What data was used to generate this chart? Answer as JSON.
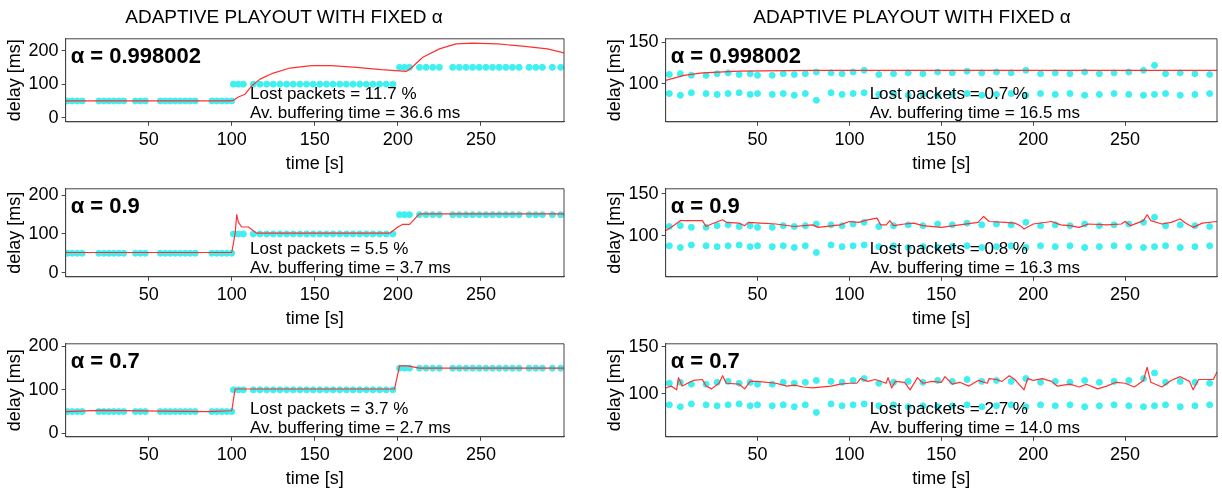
{
  "chart_data": [
    {
      "type": "scatter",
      "title": "ADAPTIVE PLAYOUT WITH FIXED α",
      "xlabel": "time [s]",
      "ylabel": "delay [ms]",
      "xlim": [
        0,
        300
      ],
      "xticks": [
        50,
        100,
        150,
        200,
        250
      ],
      "ylim": [
        -12,
        235
      ],
      "yticks": [
        0,
        100,
        200
      ],
      "legend": false,
      "annotations": [
        "α = 0.998002",
        "Lost packets = 11.7 %",
        "Av. buffering time = 36.6 ms"
      ],
      "series": [
        {
          "type": "scatter",
          "marker": "circle",
          "color": "#3ff0f0",
          "x": [
            1,
            4,
            7,
            10,
            20,
            23,
            26,
            29,
            32,
            35,
            42,
            45,
            48,
            57,
            60,
            63,
            66,
            69,
            72,
            75,
            78,
            88,
            91,
            94,
            97,
            100,
            101,
            104,
            107,
            113,
            117,
            121,
            125,
            129,
            133,
            137,
            141,
            145,
            149,
            153,
            157,
            161,
            165,
            169,
            173,
            177,
            181,
            185,
            189,
            193,
            197,
            201,
            204,
            207,
            213,
            217,
            221,
            225,
            233,
            237,
            241,
            245,
            249,
            253,
            257,
            261,
            265,
            269,
            273,
            279,
            283,
            287,
            293,
            298
          ],
          "values": [
            50,
            50,
            50,
            50,
            50,
            50,
            50,
            50,
            50,
            50,
            50,
            50,
            50,
            50,
            50,
            50,
            50,
            50,
            50,
            50,
            50,
            50,
            50,
            50,
            50,
            50,
            100,
            100,
            100,
            100,
            100,
            100,
            100,
            100,
            100,
            100,
            100,
            100,
            100,
            100,
            100,
            100,
            100,
            100,
            100,
            100,
            100,
            100,
            100,
            100,
            100,
            150,
            150,
            150,
            150,
            150,
            150,
            150,
            150,
            150,
            150,
            150,
            150,
            150,
            150,
            150,
            150,
            150,
            150,
            150,
            150,
            150,
            150,
            150
          ]
        },
        {
          "type": "line",
          "marker": "none",
          "color": "#ff3030",
          "x": [
            0,
            98,
            101,
            104,
            108,
            112,
            117,
            125,
            135,
            148,
            160,
            175,
            190,
            205,
            208,
            215,
            225,
            235,
            245,
            260,
            275,
            290,
            300
          ],
          "values": [
            50,
            50,
            52,
            62,
            70,
            95,
            115,
            133,
            148,
            155,
            155,
            150,
            143,
            138,
            148,
            180,
            205,
            220,
            222,
            220,
            213,
            205,
            193
          ]
        }
      ]
    },
    {
      "type": "scatter",
      "title": "ADAPTIVE PLAYOUT WITH FIXED α",
      "xlabel": "time [s]",
      "ylabel": "delay [ms]",
      "xlim": [
        0,
        300
      ],
      "xticks": [
        50,
        100,
        150,
        200,
        250
      ],
      "ylim": [
        54,
        154
      ],
      "yticks": [
        100,
        150
      ],
      "legend": false,
      "annotations": [
        "α = 0.998002",
        "Lost packets = 0.7 %",
        "Av. buffering time = 16.5 ms"
      ],
      "series": [
        {
          "type": "scatter",
          "marker": "circle",
          "color": "#3ff0f0",
          "x": [
            2,
            2,
            8,
            8,
            14,
            14,
            22,
            22,
            28,
            28,
            34,
            34,
            40,
            40,
            46,
            46,
            50,
            50,
            58,
            58,
            64,
            64,
            70,
            70,
            76,
            76,
            82,
            82,
            90,
            90,
            96,
            96,
            102,
            102,
            108,
            108,
            116,
            116,
            124,
            124,
            132,
            132,
            140,
            140,
            148,
            148,
            156,
            156,
            164,
            164,
            172,
            172,
            180,
            180,
            188,
            188,
            196,
            196,
            204,
            204,
            212,
            212,
            220,
            220,
            228,
            228,
            236,
            236,
            244,
            244,
            252,
            252,
            260,
            260,
            266,
            266,
            272,
            272,
            280,
            280,
            288,
            288,
            296,
            296
          ],
          "values": [
            88,
            111,
            86,
            112,
            89,
            110,
            88,
            110,
            87,
            112,
            88,
            113,
            89,
            111,
            87,
            112,
            88,
            110,
            87,
            110,
            88,
            112,
            86,
            111,
            88,
            112,
            80,
            114,
            89,
            113,
            87,
            112,
            88,
            114,
            89,
            116,
            87,
            111,
            88,
            112,
            86,
            113,
            87,
            112,
            86,
            114,
            87,
            113,
            88,
            115,
            86,
            113,
            87,
            114,
            88,
            113,
            86,
            116,
            88,
            112,
            87,
            113,
            88,
            112,
            86,
            114,
            87,
            112,
            88,
            113,
            87,
            114,
            86,
            116,
            87,
            122,
            88,
            112,
            86,
            113,
            87,
            112,
            88,
            111
          ]
        },
        {
          "type": "line",
          "marker": "none",
          "color": "#ff3030",
          "x": [
            0,
            5,
            10,
            20,
            40,
            80,
            120,
            200,
            300
          ],
          "values": [
            104,
            107,
            110,
            113,
            115,
            116,
            116,
            116,
            116
          ]
        }
      ]
    },
    {
      "type": "scatter",
      "xlabel": "time [s]",
      "ylabel": "delay [ms]",
      "xlim": [
        0,
        300
      ],
      "xticks": [
        50,
        100,
        150,
        200,
        250
      ],
      "ylim": [
        -11,
        217
      ],
      "yticks": [
        0,
        100,
        200
      ],
      "legend": false,
      "annotations": [
        "α = 0.9",
        "Lost packets = 5.5 %",
        "Av. buffering time = 3.7 ms"
      ],
      "series": [
        {
          "type": "scatter",
          "marker": "circle",
          "color": "#3ff0f0",
          "x": [
            1,
            4,
            7,
            10,
            20,
            23,
            26,
            29,
            32,
            35,
            42,
            45,
            48,
            57,
            60,
            63,
            66,
            69,
            72,
            75,
            78,
            88,
            91,
            94,
            97,
            100,
            101,
            104,
            107,
            113,
            117,
            121,
            125,
            129,
            133,
            137,
            141,
            145,
            149,
            153,
            157,
            161,
            165,
            169,
            173,
            177,
            181,
            185,
            189,
            193,
            197,
            201,
            204,
            207,
            213,
            217,
            221,
            225,
            233,
            237,
            241,
            245,
            249,
            253,
            257,
            261,
            265,
            269,
            273,
            279,
            283,
            287,
            293,
            298
          ],
          "values": [
            50,
            50,
            50,
            50,
            50,
            50,
            50,
            50,
            50,
            50,
            50,
            50,
            50,
            50,
            50,
            50,
            50,
            50,
            50,
            50,
            50,
            50,
            50,
            50,
            50,
            50,
            100,
            100,
            100,
            100,
            100,
            100,
            100,
            100,
            100,
            100,
            100,
            100,
            100,
            100,
            100,
            100,
            100,
            100,
            100,
            100,
            100,
            100,
            100,
            100,
            100,
            150,
            150,
            150,
            150,
            150,
            150,
            150,
            150,
            150,
            150,
            150,
            150,
            150,
            150,
            150,
            150,
            150,
            150,
            150,
            150,
            150,
            150,
            150
          ]
        },
        {
          "type": "line",
          "marker": "none",
          "color": "#ff3030",
          "x": [
            0,
            100,
            102,
            103,
            104,
            106,
            110,
            115,
            195,
            200,
            203,
            207,
            213,
            300
          ],
          "values": [
            52,
            52,
            100,
            150,
            130,
            118,
            118,
            102,
            102,
            118,
            125,
            125,
            152,
            152
          ]
        }
      ]
    },
    {
      "type": "scatter",
      "xlabel": "time [s]",
      "ylabel": "delay [ms]",
      "xlim": [
        0,
        300
      ],
      "xticks": [
        50,
        100,
        150,
        200,
        250
      ],
      "ylim": [
        51,
        156
      ],
      "yticks": [
        100,
        150
      ],
      "legend": false,
      "annotations": [
        "α = 0.9",
        "Lost packets = 0.8 %",
        "Av. buffering time = 16.3 ms"
      ],
      "series": [
        {
          "type": "scatter",
          "marker": "circle",
          "color": "#3ff0f0",
          "x": [
            2,
            2,
            8,
            8,
            14,
            14,
            22,
            22,
            28,
            28,
            34,
            34,
            40,
            40,
            46,
            46,
            50,
            50,
            58,
            58,
            64,
            64,
            70,
            70,
            76,
            76,
            82,
            82,
            90,
            90,
            96,
            96,
            102,
            102,
            108,
            108,
            116,
            116,
            124,
            124,
            132,
            132,
            140,
            140,
            148,
            148,
            156,
            156,
            164,
            164,
            172,
            172,
            180,
            180,
            188,
            188,
            196,
            196,
            204,
            204,
            212,
            212,
            220,
            220,
            228,
            228,
            236,
            236,
            244,
            244,
            252,
            252,
            260,
            260,
            266,
            266,
            272,
            272,
            280,
            280,
            288,
            288,
            296,
            296
          ],
          "values": [
            88,
            111,
            86,
            112,
            89,
            110,
            88,
            110,
            87,
            112,
            88,
            113,
            89,
            111,
            87,
            112,
            88,
            110,
            87,
            110,
            88,
            112,
            86,
            111,
            88,
            112,
            80,
            114,
            89,
            113,
            87,
            112,
            88,
            114,
            89,
            116,
            87,
            111,
            88,
            112,
            86,
            113,
            87,
            112,
            86,
            114,
            87,
            113,
            88,
            115,
            86,
            113,
            87,
            114,
            88,
            113,
            86,
            116,
            88,
            112,
            87,
            113,
            88,
            112,
            86,
            114,
            87,
            112,
            88,
            113,
            87,
            114,
            86,
            116,
            87,
            122,
            88,
            112,
            86,
            113,
            87,
            112,
            88,
            111
          ]
        },
        {
          "type": "line",
          "marker": "none",
          "color": "#ff3030",
          "x": [
            0,
            5,
            8,
            20,
            22,
            25,
            31,
            33,
            40,
            43,
            45,
            60,
            70,
            80,
            83,
            95,
            100,
            105,
            110,
            115,
            117,
            120,
            122,
            124,
            130,
            135,
            140,
            150,
            160,
            170,
            173,
            176,
            185,
            190,
            193,
            195,
            200,
            210,
            215,
            220,
            225,
            230,
            240,
            248,
            250,
            253,
            260,
            262,
            264,
            270,
            275,
            280,
            283,
            287,
            292,
            300
          ],
          "values": [
            106,
            113,
            118,
            118,
            111,
            114,
            119,
            116,
            115,
            112,
            116,
            114,
            111,
            113,
            110,
            113,
            117,
            116,
            119,
            121,
            113,
            113,
            118,
            112,
            114,
            115,
            112,
            110,
            113,
            116,
            123,
            117,
            116,
            115,
            112,
            108,
            114,
            117,
            113,
            112,
            110,
            114,
            113,
            114,
            117,
            112,
            118,
            125,
            118,
            114,
            116,
            120,
            115,
            110,
            115,
            117
          ]
        }
      ]
    },
    {
      "type": "scatter",
      "xlabel": "time [s]",
      "ylabel": "delay [ms]",
      "xlim": [
        0,
        300
      ],
      "xticks": [
        50,
        100,
        150,
        200,
        250
      ],
      "ylim": [
        -8,
        206
      ],
      "yticks": [
        0,
        100,
        200
      ],
      "legend": false,
      "annotations": [
        "α = 0.7",
        "Lost packets = 3.7 %",
        "Av. buffering time = 2.7 ms"
      ],
      "series": [
        {
          "type": "scatter",
          "marker": "circle",
          "color": "#3ff0f0",
          "x": [
            1,
            4,
            7,
            10,
            20,
            23,
            26,
            29,
            32,
            35,
            42,
            45,
            48,
            57,
            60,
            63,
            66,
            69,
            72,
            75,
            78,
            88,
            91,
            94,
            97,
            100,
            101,
            104,
            107,
            113,
            117,
            121,
            125,
            129,
            133,
            137,
            141,
            145,
            149,
            153,
            157,
            161,
            165,
            169,
            173,
            177,
            181,
            185,
            189,
            193,
            197,
            201,
            204,
            207,
            213,
            217,
            221,
            225,
            233,
            237,
            241,
            245,
            249,
            253,
            257,
            261,
            265,
            269,
            273,
            279,
            283,
            287,
            293,
            298
          ],
          "values": [
            50,
            50,
            50,
            50,
            50,
            50,
            50,
            50,
            50,
            50,
            50,
            50,
            50,
            50,
            50,
            50,
            50,
            50,
            50,
            50,
            50,
            50,
            50,
            50,
            50,
            50,
            100,
            100,
            100,
            100,
            100,
            100,
            100,
            100,
            100,
            100,
            100,
            100,
            100,
            100,
            100,
            100,
            100,
            100,
            100,
            100,
            100,
            100,
            100,
            100,
            100,
            150,
            150,
            150,
            150,
            150,
            150,
            150,
            150,
            150,
            150,
            150,
            150,
            150,
            150,
            150,
            150,
            150,
            150,
            150,
            150,
            150,
            150,
            150
          ]
        },
        {
          "type": "line",
          "marker": "none",
          "color": "#ff3030",
          "x": [
            0,
            20,
            85,
            100,
            102,
            198,
            201,
            206,
            213,
            300
          ],
          "values": [
            50,
            53,
            50,
            52,
            102,
            102,
            155,
            155,
            150,
            150
          ]
        }
      ]
    },
    {
      "type": "scatter",
      "xlabel": "time [s]",
      "ylabel": "delay [ms]",
      "xlim": [
        0,
        300
      ],
      "xticks": [
        50,
        100,
        150,
        200,
        250
      ],
      "ylim": [
        54,
        153
      ],
      "yticks": [
        100,
        150
      ],
      "legend": false,
      "annotations": [
        "α = 0.7",
        "Lost packets = 2.7 %",
        "Av. buffering time = 14.0 ms"
      ],
      "series": [
        {
          "type": "scatter",
          "marker": "circle",
          "color": "#3ff0f0",
          "x": [
            2,
            2,
            8,
            8,
            14,
            14,
            22,
            22,
            28,
            28,
            34,
            34,
            40,
            40,
            46,
            46,
            50,
            50,
            58,
            58,
            64,
            64,
            70,
            70,
            76,
            76,
            82,
            82,
            90,
            90,
            96,
            96,
            102,
            102,
            108,
            108,
            116,
            116,
            124,
            124,
            132,
            132,
            140,
            140,
            148,
            148,
            156,
            156,
            164,
            164,
            172,
            172,
            180,
            180,
            188,
            188,
            196,
            196,
            204,
            204,
            212,
            212,
            220,
            220,
            228,
            228,
            236,
            236,
            244,
            244,
            252,
            252,
            260,
            260,
            266,
            266,
            272,
            272,
            280,
            280,
            288,
            288,
            296,
            296
          ],
          "values": [
            88,
            111,
            86,
            112,
            89,
            110,
            88,
            110,
            87,
            112,
            88,
            113,
            89,
            111,
            87,
            112,
            88,
            110,
            87,
            110,
            88,
            112,
            86,
            111,
            88,
            112,
            80,
            114,
            89,
            113,
            87,
            112,
            88,
            114,
            89,
            116,
            87,
            111,
            88,
            112,
            86,
            113,
            87,
            112,
            86,
            114,
            87,
            113,
            88,
            115,
            86,
            113,
            87,
            114,
            88,
            113,
            86,
            116,
            88,
            112,
            87,
            113,
            88,
            112,
            86,
            114,
            87,
            112,
            88,
            113,
            87,
            114,
            86,
            116,
            87,
            122,
            88,
            112,
            86,
            113,
            87,
            112,
            88,
            111
          ]
        },
        {
          "type": "line",
          "marker": "none",
          "color": "#ff3030",
          "x": [
            0,
            3,
            6,
            7,
            9,
            15,
            20,
            22,
            25,
            29,
            31,
            33,
            40,
            43,
            46,
            50,
            60,
            66,
            70,
            75,
            80,
            90,
            95,
            100,
            104,
            106,
            110,
            114,
            120,
            121,
            123,
            125,
            130,
            133,
            137,
            140,
            145,
            150,
            152,
            156,
            160,
            165,
            170,
            175,
            176,
            180,
            183,
            187,
            190,
            195,
            197,
            200,
            205,
            210,
            213,
            220,
            225,
            229,
            235,
            240,
            245,
            250,
            255,
            260,
            262,
            264,
            270,
            275,
            280,
            285,
            287,
            290,
            298,
            300
          ],
          "values": [
            106,
            108,
            104,
            117,
            108,
            114,
            115,
            108,
            105,
            111,
            119,
            111,
            110,
            105,
            113,
            113,
            111,
            108,
            109,
            107,
            106,
            108,
            110,
            111,
            111,
            116,
            113,
            115,
            111,
            117,
            106,
            113,
            112,
            104,
            117,
            111,
            113,
            112,
            118,
            110,
            112,
            108,
            114,
            111,
            116,
            115,
            113,
            119,
            115,
            104,
            116,
            114,
            116,
            113,
            108,
            110,
            107,
            110,
            105,
            108,
            112,
            111,
            107,
            114,
            128,
            112,
            107,
            114,
            118,
            113,
            104,
            115,
            115,
            123
          ]
        }
      ]
    }
  ]
}
